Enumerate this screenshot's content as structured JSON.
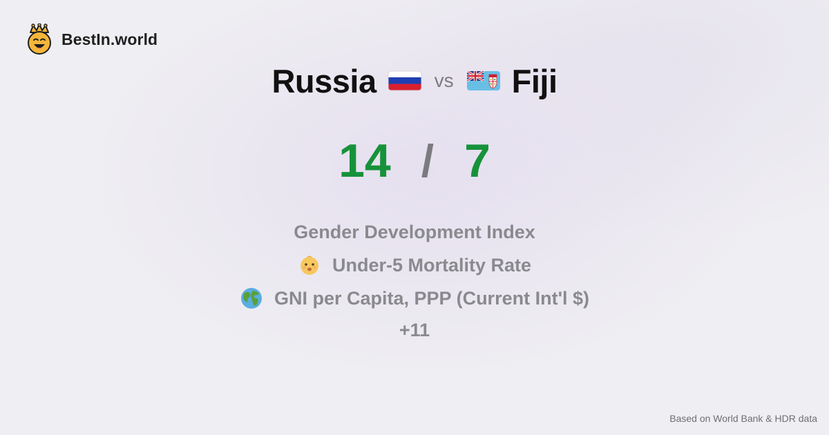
{
  "brand": {
    "name": "BestIn.world",
    "logo_icon": "crowned-smiley-icon",
    "logo_color": "#f4b63a"
  },
  "comparison": {
    "left_country": "Russia",
    "left_flag_icon": "russia-flag-icon",
    "vs_label": "vs",
    "right_country": "Fiji",
    "right_flag_icon": "fiji-flag-icon"
  },
  "score": {
    "left": "14",
    "separator": "/",
    "right": "7",
    "color": "#17923a"
  },
  "metrics": [
    {
      "label": "Gender Development Index",
      "icon": ""
    },
    {
      "label": "Under-5 Mortality Rate",
      "icon": "baby-icon"
    },
    {
      "label": "GNI per Capita, PPP (Current Int'l $)",
      "icon": "globe-icon"
    }
  ],
  "more_label": "+11",
  "footer_note": "Based on World Bank & HDR data"
}
